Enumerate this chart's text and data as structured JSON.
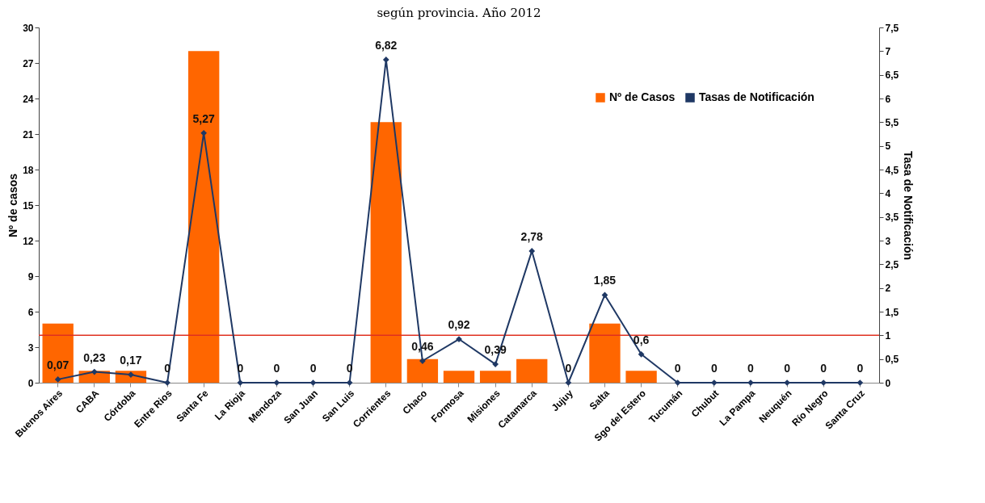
{
  "chart_data": {
    "type": "bar",
    "title": "según provincia. Año 2012",
    "ylabel": "Nº de casos",
    "y2label": "Tasa de Notificación",
    "categories": [
      "Buenos Aires",
      "CABA",
      "Córdoba",
      "Entre Rios",
      "Santa Fe",
      "La Rioja",
      "Mendoza",
      "San Juan",
      "San Luis",
      "Corrientes",
      "Chaco",
      "Formosa",
      "Misiones",
      "Catamarca",
      "Jujuy",
      "Salta",
      "Sgo del Estero",
      "Tucumán",
      "Chubut",
      "La Pampa",
      "Neuquén",
      "Río Negro",
      "Santa Cruz"
    ],
    "series": [
      {
        "name": "Nº de Casos",
        "color": "#ff6600",
        "values": [
          5,
          1,
          1,
          0,
          28,
          0,
          0,
          0,
          0,
          22,
          2,
          1,
          1,
          2,
          0,
          5,
          1,
          0,
          0,
          0,
          0,
          0,
          0
        ]
      },
      {
        "name": "Tasas de Notificación",
        "type": "line",
        "axis": "y2",
        "color": "#1f3864",
        "marker": "diamond",
        "values": [
          0.07,
          0.23,
          0.17,
          0,
          5.27,
          0,
          0,
          0,
          0,
          6.82,
          0.46,
          0.92,
          0.39,
          2.78,
          0,
          1.85,
          0.6,
          0,
          0,
          0,
          0,
          0,
          0
        ],
        "value_labels": [
          "0,07",
          "0,23",
          "0,17",
          "0",
          "5,27",
          "0",
          "0",
          "0",
          "0",
          "6,82",
          "0,46",
          "0,92",
          "0,39",
          "2,78",
          "0",
          "1,85",
          "0,6",
          "0",
          "0",
          "0",
          "0",
          "0",
          "0"
        ]
      }
    ],
    "ylim": [
      0,
      30
    ],
    "yticks": [
      0,
      3,
      6,
      9,
      12,
      15,
      18,
      21,
      24,
      27,
      30
    ],
    "y2lim": [
      0,
      7.5
    ],
    "y2ticks": [
      0,
      {
        "value": 0.5,
        "label": "0,5"
      },
      1,
      {
        "value": 1.5,
        "label": "1,5"
      },
      2,
      {
        "value": 2.5,
        "label": "2,5"
      },
      3,
      {
        "value": 3.5,
        "label": "3,5"
      },
      4,
      {
        "value": 4.5,
        "label": "4,5"
      },
      5,
      {
        "value": 5.5,
        "label": "5,5"
      },
      6,
      {
        "value": 6.5,
        "label": "6,5"
      },
      7,
      {
        "value": 7.5,
        "label": "7,5"
      }
    ],
    "ref_lines": [
      {
        "axis": "y2",
        "value": 1,
        "color": "#e03020"
      }
    ],
    "grid": false,
    "legend": "top right"
  }
}
